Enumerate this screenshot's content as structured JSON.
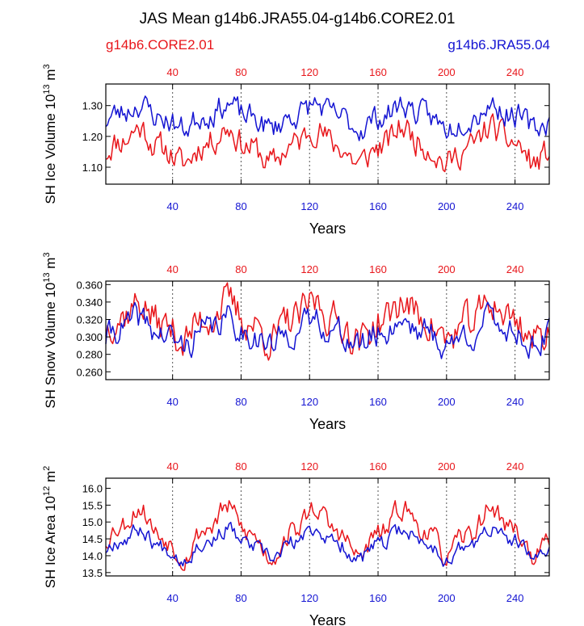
{
  "figure": {
    "title": "JAS Mean g14b6.JRA55.04-g14b6.CORE2.01",
    "left_label": "g14b6.CORE2.01",
    "right_label": "g14b6.JRA55.04"
  },
  "colors": {
    "core": "#e8161b",
    "jra": "#1414d2",
    "axis": "#000000",
    "grid": "#555555"
  },
  "chart_data": [
    {
      "type": "line",
      "title": "SH Ice Volume",
      "ylabel_main": "SH Ice Volume 10",
      "ylabel_exp": "13",
      "ylabel_unit": " m",
      "ylabel_unit_exp": "3",
      "xlabel": "Years",
      "xlim": [
        1,
        260
      ],
      "ylim": [
        1.045,
        1.37
      ],
      "xticks": [
        40,
        80,
        120,
        160,
        200,
        240
      ],
      "xtick_labels": [
        "40",
        "80",
        "120",
        "160",
        "200",
        "240"
      ],
      "yticks": [
        1.1,
        1.2,
        1.3
      ],
      "ytick_labels": [
        "1.10",
        "1.20",
        "1.30"
      ],
      "grid_x": true,
      "series": [
        {
          "name": "g14b6.CORE2.01",
          "color_key": "core",
          "base": 1.17,
          "amp": 0.06,
          "noise": 0.04,
          "seed": 11,
          "lo": 1.05,
          "hi": 1.32
        },
        {
          "name": "g14b6.JRA55.04",
          "color_key": "jra",
          "base": 1.265,
          "amp": 0.04,
          "noise": 0.035,
          "seed": 23,
          "lo": 1.14,
          "hi": 1.36
        }
      ]
    },
    {
      "type": "line",
      "title": "SH Snow Volume",
      "ylabel_main": "SH Snow Volume 10",
      "ylabel_exp": "13",
      "ylabel_unit": " m",
      "ylabel_unit_exp": "3",
      "xlabel": "Years",
      "xlim": [
        1,
        260
      ],
      "ylim": [
        0.251,
        0.364
      ],
      "xticks": [
        40,
        80,
        120,
        160,
        200,
        240
      ],
      "xtick_labels": [
        "40",
        "80",
        "120",
        "160",
        "200",
        "240"
      ],
      "yticks": [
        0.26,
        0.28,
        0.3,
        0.32,
        0.34,
        0.36
      ],
      "ytick_labels": [
        "0.260",
        "0.280",
        "0.300",
        "0.320",
        "0.340",
        "0.360"
      ],
      "grid_x": true,
      "series": [
        {
          "name": "g14b6.CORE2.01",
          "color_key": "core",
          "base": 0.318,
          "amp": 0.022,
          "noise": 0.018,
          "seed": 37,
          "lo": 0.253,
          "hi": 0.362
        },
        {
          "name": "g14b6.JRA55.04",
          "color_key": "jra",
          "base": 0.305,
          "amp": 0.016,
          "noise": 0.014,
          "seed": 41,
          "lo": 0.265,
          "hi": 0.341
        }
      ]
    },
    {
      "type": "line",
      "title": "SH Ice Area",
      "ylabel_main": "SH Ice Area 10",
      "ylabel_exp": "12",
      "ylabel_unit": " m",
      "ylabel_unit_exp": "2",
      "xlabel": "Years",
      "xlim": [
        1,
        260
      ],
      "ylim": [
        13.4,
        16.3
      ],
      "xticks": [
        40,
        80,
        120,
        160,
        200,
        240
      ],
      "xtick_labels": [
        "40",
        "80",
        "120",
        "160",
        "200",
        "240"
      ],
      "yticks": [
        13.5,
        14.0,
        14.5,
        15.0,
        15.5,
        16.0
      ],
      "ytick_labels": [
        "13.5",
        "14.0",
        "14.5",
        "15.0",
        "15.5",
        "16.0"
      ],
      "grid_x": true,
      "series": [
        {
          "name": "g14b6.CORE2.01",
          "color_key": "core",
          "base": 14.7,
          "amp": 0.75,
          "noise": 0.28,
          "seed": 53,
          "lo": 13.45,
          "hi": 16.3
        },
        {
          "name": "g14b6.JRA55.04",
          "color_key": "jra",
          "base": 14.35,
          "amp": 0.45,
          "noise": 0.2,
          "seed": 67,
          "lo": 13.45,
          "hi": 15.6
        }
      ]
    }
  ]
}
